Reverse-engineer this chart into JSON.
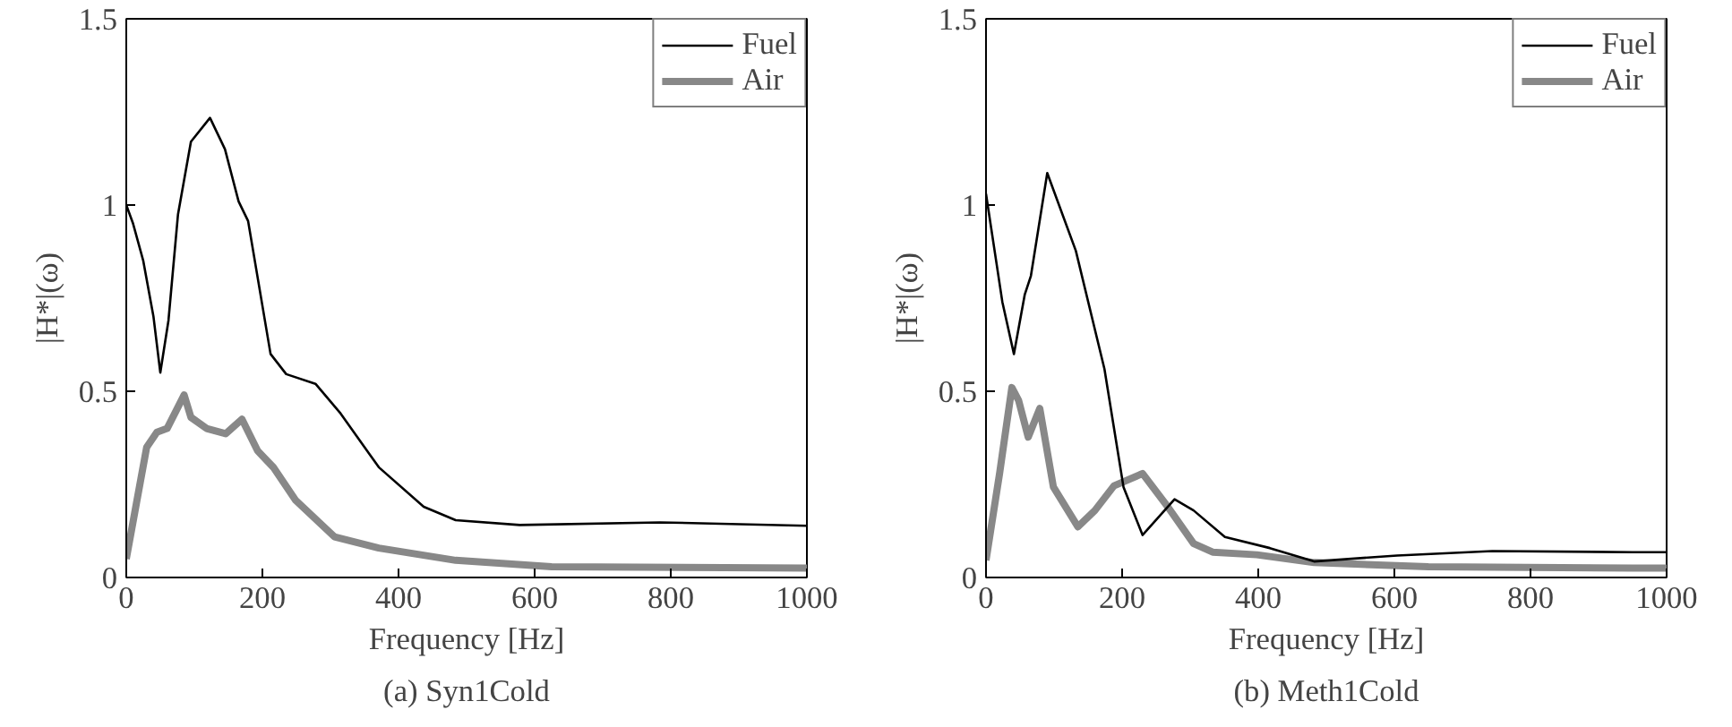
{
  "chart_data": [
    {
      "type": "line",
      "title": "(a) Syn1Cold",
      "xlabel": "Frequency [Hz]",
      "ylabel": "|H*|(ω)",
      "xlim": [
        0,
        1000
      ],
      "ylim": [
        0,
        1.5
      ],
      "xticks": [
        0,
        200,
        400,
        600,
        800,
        1000
      ],
      "yticks": [
        0,
        0.5,
        1,
        1.5
      ],
      "grid": false,
      "legend": "top right",
      "line_style": "solid",
      "marker": "none",
      "series": [
        {
          "name": "Fuel",
          "color": "#000000",
          "x": [
            0,
            10,
            25,
            40,
            50,
            62,
            76,
            95,
            123,
            145,
            165,
            179,
            212,
            235,
            278,
            315,
            371,
            437,
            484,
            578,
            784,
            1000
          ],
          "values": [
            1.0,
            0.95,
            0.85,
            0.7,
            0.55,
            0.69,
            0.975,
            1.17,
            1.234,
            1.15,
            1.01,
            0.957,
            0.6,
            0.546,
            0.52,
            0.44,
            0.296,
            0.19,
            0.154,
            0.141,
            0.148,
            0.139
          ]
        },
        {
          "name": "Air",
          "color": "#888888",
          "x": [
            0,
            15,
            30,
            45,
            60,
            85,
            95,
            118,
            146,
            170,
            193,
            216,
            249,
            306,
            371,
            484,
            625,
            1000
          ],
          "values": [
            0.05,
            0.2,
            0.35,
            0.39,
            0.4,
            0.49,
            0.43,
            0.4,
            0.386,
            0.425,
            0.34,
            0.296,
            0.207,
            0.109,
            0.079,
            0.046,
            0.029,
            0.025
          ]
        }
      ]
    },
    {
      "type": "line",
      "title": "(b) Meth1Cold",
      "xlabel": "Frequency [Hz]",
      "ylabel": "|H*|(ω)",
      "xlim": [
        0,
        1000
      ],
      "ylim": [
        0,
        1.5
      ],
      "xticks": [
        0,
        200,
        400,
        600,
        800,
        1000
      ],
      "yticks": [
        0,
        0.5,
        1,
        1.5
      ],
      "grid": false,
      "legend": "top right",
      "line_style": "solid",
      "marker": "none",
      "series": [
        {
          "name": "Fuel",
          "color": "#000000",
          "x": [
            0,
            24,
            41,
            57,
            66,
            90,
            132,
            174,
            202,
            230,
            277,
            305,
            351,
            417,
            482,
            604,
            744,
            950,
            1000
          ],
          "values": [
            1.03,
            0.74,
            0.6,
            0.76,
            0.81,
            1.086,
            0.877,
            0.56,
            0.243,
            0.114,
            0.21,
            0.18,
            0.109,
            0.079,
            0.043,
            0.059,
            0.071,
            0.068,
            0.068
          ]
        },
        {
          "name": "Air",
          "color": "#888888",
          "x": [
            0,
            20,
            38,
            48,
            62,
            79,
            99,
            135,
            160,
            188,
            230,
            267,
            305,
            333,
            398,
            482,
            650,
            950,
            1000
          ],
          "values": [
            0.046,
            0.28,
            0.51,
            0.475,
            0.377,
            0.454,
            0.243,
            0.136,
            0.18,
            0.246,
            0.279,
            0.19,
            0.091,
            0.068,
            0.061,
            0.04,
            0.029,
            0.025,
            0.025
          ]
        }
      ]
    }
  ]
}
